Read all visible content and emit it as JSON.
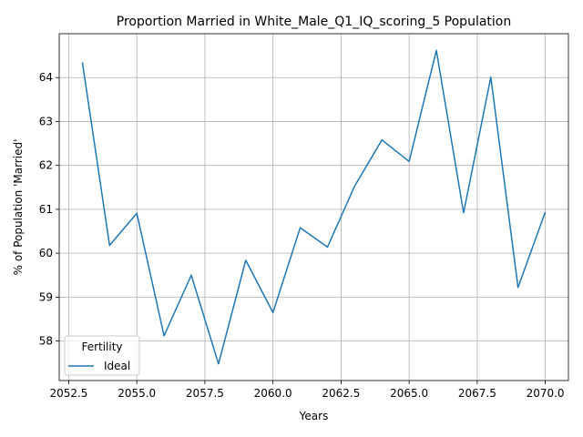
{
  "chart_data": {
    "type": "line",
    "title": "Proportion Married in White_Male_Q1_IQ_scoring_5 Population",
    "xlabel": "Years",
    "ylabel": "% of Population 'Married'",
    "xlim": [
      2052.15,
      2070.85
    ],
    "ylim": [
      57.1,
      65.0
    ],
    "xticks": [
      2052.5,
      2055.0,
      2057.5,
      2060.0,
      2062.5,
      2065.0,
      2067.5,
      2070.0
    ],
    "xtick_labels": [
      "2052.5",
      "2055.0",
      "2057.5",
      "2060.0",
      "2062.5",
      "2065.0",
      "2067.5",
      "2070.0"
    ],
    "yticks": [
      58,
      59,
      60,
      61,
      62,
      63,
      64
    ],
    "ytick_labels": [
      "58",
      "59",
      "60",
      "61",
      "62",
      "63",
      "64"
    ],
    "grid": true,
    "legend": {
      "title": "Fertility",
      "placement": "lower-left"
    },
    "series": [
      {
        "name": "Ideal",
        "color": "#1f77b4",
        "x": [
          2053,
          2054,
          2055,
          2056,
          2057,
          2058,
          2059,
          2060,
          2061,
          2062,
          2063,
          2064,
          2065,
          2066,
          2067,
          2068,
          2069,
          2070
        ],
        "y": [
          64.35,
          60.18,
          60.91,
          58.12,
          59.5,
          57.48,
          59.84,
          58.65,
          60.58,
          60.14,
          61.53,
          62.58,
          62.09,
          64.62,
          60.92,
          64.01,
          59.22,
          60.94
        ]
      }
    ]
  }
}
